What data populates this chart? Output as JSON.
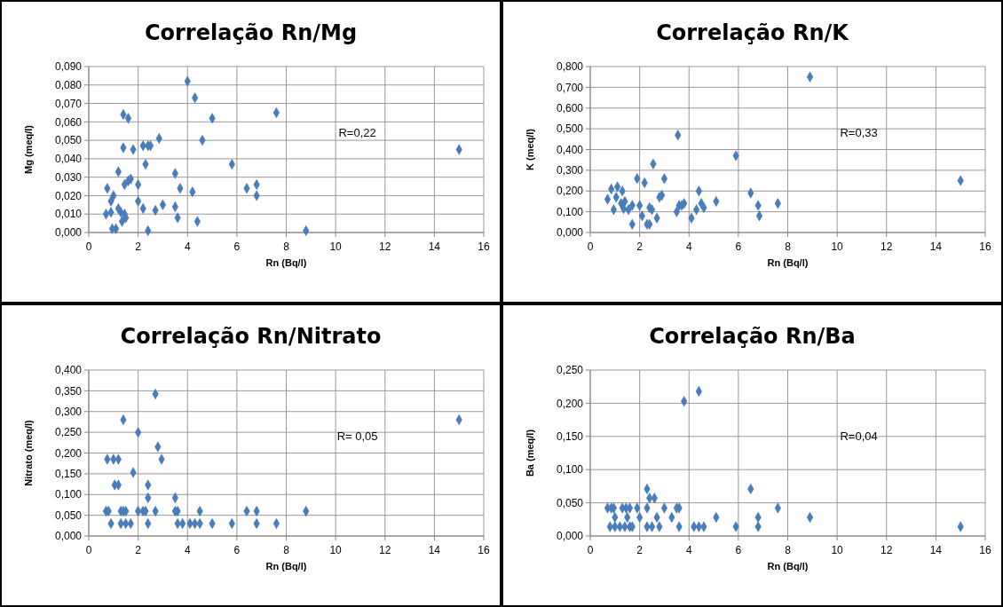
{
  "chart_data": [
    {
      "type": "scatter",
      "title": "Correlação Rn/Mg",
      "xlabel": "Rn (Bq/l)",
      "ylabel": "Mg (meq/l)",
      "annotations": [
        "R=0,22"
      ],
      "color": "#4a7ebb",
      "marker": "diamond",
      "grid": true,
      "xlim": [
        0,
        16
      ],
      "xticks": [
        0,
        2,
        4,
        6,
        8,
        10,
        12,
        14,
        16
      ],
      "ylim": [
        0,
        0.09
      ],
      "yticks": [
        {
          "value": 0,
          "label": "0,000"
        },
        {
          "value": 0.01,
          "label": "0,010"
        },
        {
          "value": 0.02,
          "label": "0,020"
        },
        {
          "value": 0.03,
          "label": "0,030"
        },
        {
          "value": 0.04,
          "label": "0,040"
        },
        {
          "value": 0.05,
          "label": "0,050"
        },
        {
          "value": 0.06,
          "label": "0,060"
        },
        {
          "value": 0.07,
          "label": "0,070"
        },
        {
          "value": 0.08,
          "label": "0,080"
        },
        {
          "value": 0.09,
          "label": "0,090"
        }
      ],
      "x": [
        0.7,
        0.75,
        0.9,
        0.9,
        1.0,
        0.95,
        1.1,
        1.2,
        1.2,
        1.3,
        1.5,
        1.35,
        1.45,
        1.4,
        1.6,
        1.4,
        1.45,
        1.6,
        1.7,
        1.8,
        2.0,
        2.0,
        2.2,
        2.3,
        2.2,
        2.4,
        2.4,
        2.5,
        2.7,
        2.85,
        3.0,
        3.5,
        3.5,
        3.6,
        3.7,
        4.0,
        4.2,
        4.3,
        4.4,
        4.6,
        5.0,
        5.8,
        6.4,
        6.8,
        6.8,
        7.6,
        8.8,
        15.0
      ],
      "values": [
        0.01,
        0.024,
        0.011,
        0.017,
        0.02,
        0.002,
        0.002,
        0.033,
        0.013,
        0.011,
        0.008,
        0.006,
        0.01,
        0.064,
        0.062,
        0.046,
        0.026,
        0.028,
        0.029,
        0.045,
        0.026,
        0.017,
        0.047,
        0.037,
        0.013,
        0.001,
        0.047,
        0.047,
        0.012,
        0.051,
        0.015,
        0.032,
        0.014,
        0.008,
        0.024,
        0.082,
        0.022,
        0.073,
        0.006,
        0.05,
        0.062,
        0.037,
        0.024,
        0.026,
        0.02,
        0.065,
        0.001,
        0.045
      ]
    },
    {
      "type": "scatter",
      "title": "Correlação Rn/K",
      "xlabel": "Rn (Bq/l)",
      "ylabel": "K (meq/l)",
      "annotations": [
        "R=0,33"
      ],
      "color": "#4a7ebb",
      "marker": "diamond",
      "grid": true,
      "xlim": [
        0,
        16
      ],
      "xticks": [
        0,
        2,
        4,
        6,
        8,
        10,
        12,
        14,
        16
      ],
      "ylim": [
        0,
        0.8
      ],
      "yticks": [
        {
          "value": 0,
          "label": "0,000"
        },
        {
          "value": 0.1,
          "label": "0,100"
        },
        {
          "value": 0.2,
          "label": "0,200"
        },
        {
          "value": 0.3,
          "label": "0,300"
        },
        {
          "value": 0.4,
          "label": "0,400"
        },
        {
          "value": 0.5,
          "label": "0,500"
        },
        {
          "value": 0.6,
          "label": "0,600"
        },
        {
          "value": 0.7,
          "label": "0,700"
        },
        {
          "value": 0.8,
          "label": "0,800"
        }
      ],
      "x": [
        0.7,
        0.85,
        0.95,
        1.1,
        1.05,
        1.3,
        1.25,
        1.35,
        1.55,
        1.4,
        1.7,
        1.7,
        1.9,
        2.0,
        2.1,
        2.2,
        2.3,
        2.4,
        2.4,
        2.5,
        2.55,
        2.7,
        2.8,
        2.9,
        3.0,
        3.55,
        3.5,
        3.6,
        3.7,
        3.8,
        4.1,
        4.3,
        4.4,
        4.5,
        4.6,
        5.1,
        5.9,
        6.5,
        6.8,
        6.85,
        7.6,
        8.9,
        15.0
      ],
      "values": [
        0.16,
        0.21,
        0.11,
        0.22,
        0.17,
        0.2,
        0.14,
        0.115,
        0.11,
        0.15,
        0.13,
        0.04,
        0.26,
        0.13,
        0.08,
        0.24,
        0.04,
        0.04,
        0.12,
        0.11,
        0.33,
        0.07,
        0.17,
        0.18,
        0.26,
        0.47,
        0.1,
        0.13,
        0.13,
        0.14,
        0.07,
        0.11,
        0.2,
        0.14,
        0.12,
        0.15,
        0.37,
        0.19,
        0.13,
        0.08,
        0.14,
        0.75,
        0.25
      ]
    },
    {
      "type": "scatter",
      "title": "Correlação Rn/Nitrato",
      "xlabel": "Rn (Bq/l)",
      "ylabel": "Nitrato (meq/l)",
      "annotations": [
        "R= 0,05"
      ],
      "color": "#4a7ebb",
      "marker": "diamond",
      "grid": true,
      "xlim": [
        0,
        16
      ],
      "xticks": [
        0,
        2,
        4,
        6,
        8,
        10,
        12,
        14,
        16
      ],
      "ylim": [
        0,
        0.4
      ],
      "yticks": [
        {
          "value": 0,
          "label": "0,000"
        },
        {
          "value": 0.05,
          "label": "0,050"
        },
        {
          "value": 0.1,
          "label": "0,100"
        },
        {
          "value": 0.15,
          "label": "0,150"
        },
        {
          "value": 0.2,
          "label": "0,200"
        },
        {
          "value": 0.25,
          "label": "0,250"
        },
        {
          "value": 0.3,
          "label": "0,300"
        },
        {
          "value": 0.35,
          "label": "0,350"
        },
        {
          "value": 0.4,
          "label": "0,400"
        }
      ],
      "x": [
        0.7,
        0.8,
        1.3,
        1.4,
        1.5,
        2.0,
        2.2,
        2.3,
        2.7,
        3.5,
        3.6,
        4.5,
        6.4,
        6.8,
        8.8,
        0.9,
        1.3,
        1.5,
        1.7,
        2.4,
        3.6,
        3.8,
        4.1,
        4.3,
        4.5,
        5.0,
        5.8,
        6.8,
        7.6,
        0.75,
        1.0,
        1.2,
        1.05,
        1.2,
        1.4,
        1.8,
        2.0,
        2.4,
        2.4,
        2.7,
        2.8,
        2.95,
        3.5,
        15.0
      ],
      "values": [
        0.06,
        0.06,
        0.06,
        0.06,
        0.06,
        0.06,
        0.06,
        0.06,
        0.06,
        0.06,
        0.06,
        0.06,
        0.06,
        0.06,
        0.06,
        0.03,
        0.03,
        0.03,
        0.03,
        0.03,
        0.03,
        0.03,
        0.03,
        0.03,
        0.03,
        0.03,
        0.03,
        0.03,
        0.03,
        0.185,
        0.185,
        0.185,
        0.123,
        0.123,
        0.28,
        0.153,
        0.25,
        0.123,
        0.092,
        0.342,
        0.215,
        0.185,
        0.092,
        0.28
      ]
    },
    {
      "type": "scatter",
      "title": "Correlação Rn/Ba",
      "xlabel": "Rn (Bq/l)",
      "ylabel": "Ba (meq/l)",
      "annotations": [
        "R=0,04"
      ],
      "color": "#4a7ebb",
      "marker": "diamond",
      "grid": true,
      "xlim": [
        0,
        16
      ],
      "xticks": [
        0,
        2,
        4,
        6,
        8,
        10,
        12,
        14,
        16
      ],
      "ylim": [
        0,
        0.25
      ],
      "yticks": [
        {
          "value": 0,
          "label": "0,000"
        },
        {
          "value": 0.05,
          "label": "0,050"
        },
        {
          "value": 0.1,
          "label": "0,100"
        },
        {
          "value": 0.15,
          "label": "0,150"
        },
        {
          "value": 0.2,
          "label": "0,200"
        },
        {
          "value": 0.25,
          "label": "0,250"
        }
      ],
      "x": [
        0.7,
        0.85,
        0.95,
        1.3,
        1.45,
        1.6,
        1.9,
        2.3,
        3.0,
        3.5,
        3.6,
        7.6,
        2.4,
        2.6,
        2.3,
        6.5,
        3.8,
        4.4,
        1.0,
        1.5,
        2.0,
        2.7,
        3.3,
        5.1,
        6.8,
        8.9,
        0.8,
        1.0,
        1.2,
        1.4,
        1.6,
        1.7,
        2.3,
        2.5,
        2.8,
        3.6,
        4.2,
        4.4,
        4.6,
        5.9,
        6.8,
        15.0
      ],
      "values": [
        0.042,
        0.042,
        0.042,
        0.042,
        0.042,
        0.042,
        0.042,
        0.042,
        0.042,
        0.042,
        0.042,
        0.042,
        0.057,
        0.057,
        0.071,
        0.071,
        0.203,
        0.218,
        0.028,
        0.028,
        0.028,
        0.028,
        0.028,
        0.028,
        0.028,
        0.028,
        0.014,
        0.014,
        0.014,
        0.014,
        0.014,
        0.014,
        0.014,
        0.014,
        0.014,
        0.014,
        0.014,
        0.014,
        0.014,
        0.014,
        0.014,
        0.014
      ]
    }
  ]
}
